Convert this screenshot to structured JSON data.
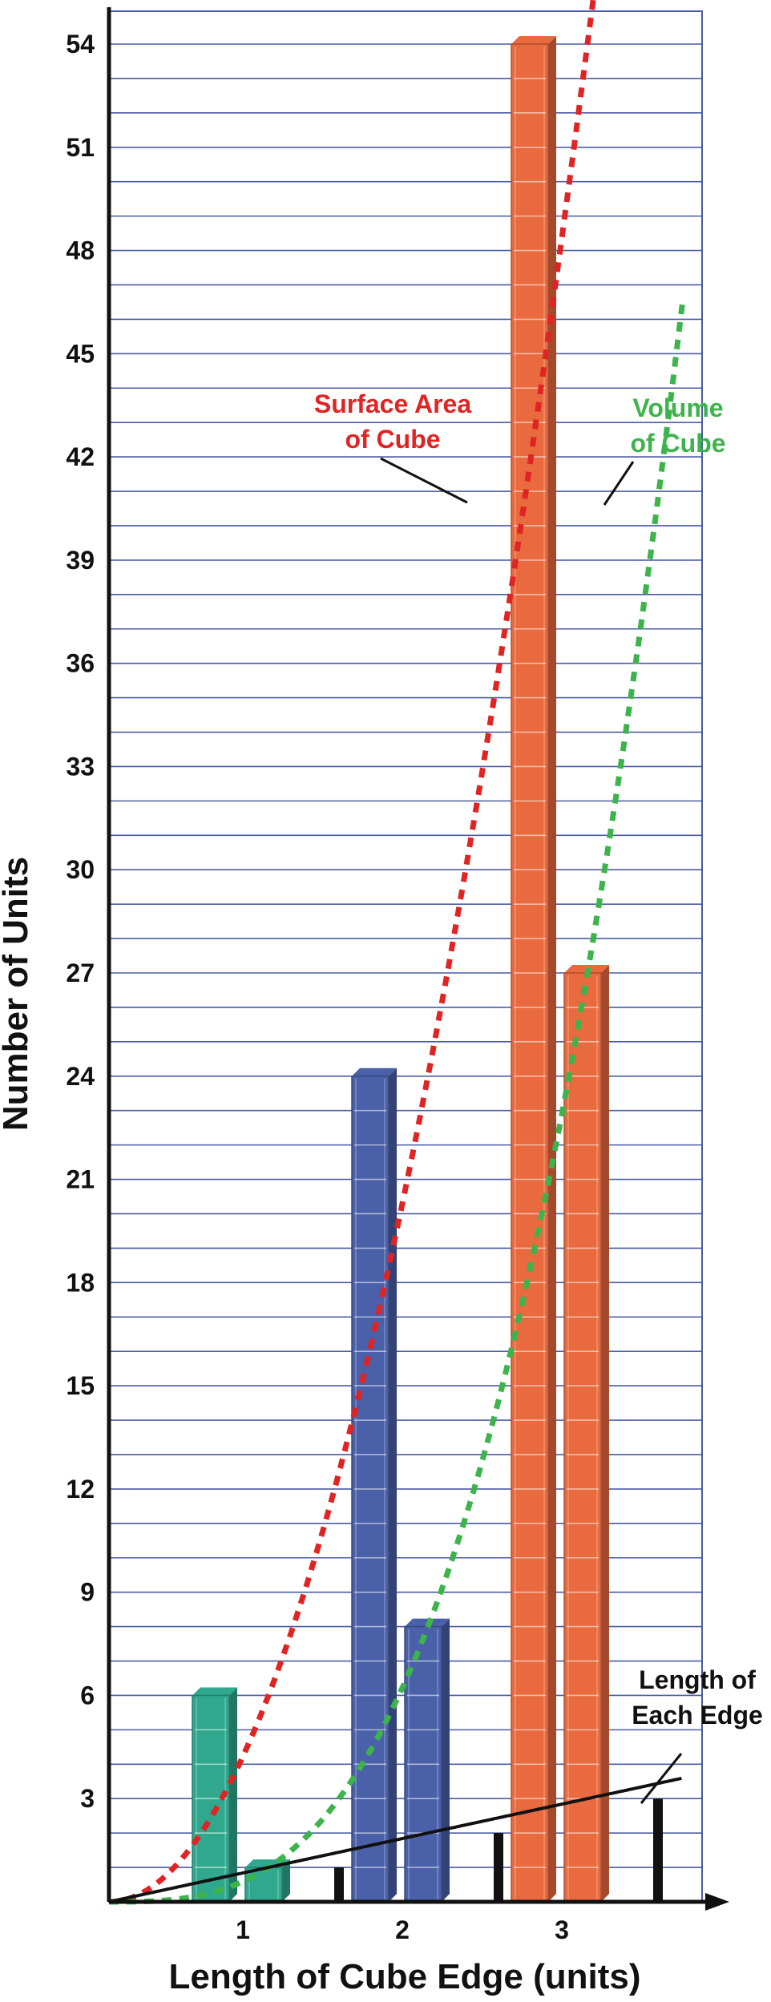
{
  "chart_data": {
    "type": "bar",
    "title": "",
    "xlabel": "Length of Cube Edge (units)",
    "ylabel": "Number of Units",
    "ylim": [
      0,
      55
    ],
    "y_ticks": [
      3,
      6,
      9,
      12,
      15,
      18,
      21,
      24,
      27,
      30,
      33,
      36,
      39,
      42,
      45,
      48,
      51,
      54
    ],
    "y_minor_step": 1,
    "categories": [
      "1",
      "2",
      "3"
    ],
    "grid": true,
    "series": [
      {
        "name": "Surface Area of Cube",
        "values": [
          6,
          24,
          54
        ]
      },
      {
        "name": "Volume of Cube",
        "values": [
          1,
          8,
          27
        ]
      },
      {
        "name": "Length of Each Edge",
        "values": [
          1,
          2,
          3
        ]
      }
    ],
    "group_colors": [
      "#2fa88e",
      "#4a60a8",
      "#e86a3e"
    ],
    "curves": [
      {
        "label_lines": [
          "Surface Area",
          "of Cube"
        ],
        "color": "#e02424",
        "formula": "6x^2",
        "style": "dotted"
      },
      {
        "label_lines": [
          "Volume",
          "of Cube"
        ],
        "color": "#3cb44b",
        "formula": "x^3",
        "style": "dotted"
      },
      {
        "label_lines": [
          "Length of",
          "Each Edge"
        ],
        "color": "#111111",
        "formula": "x",
        "style": "solid"
      }
    ]
  }
}
